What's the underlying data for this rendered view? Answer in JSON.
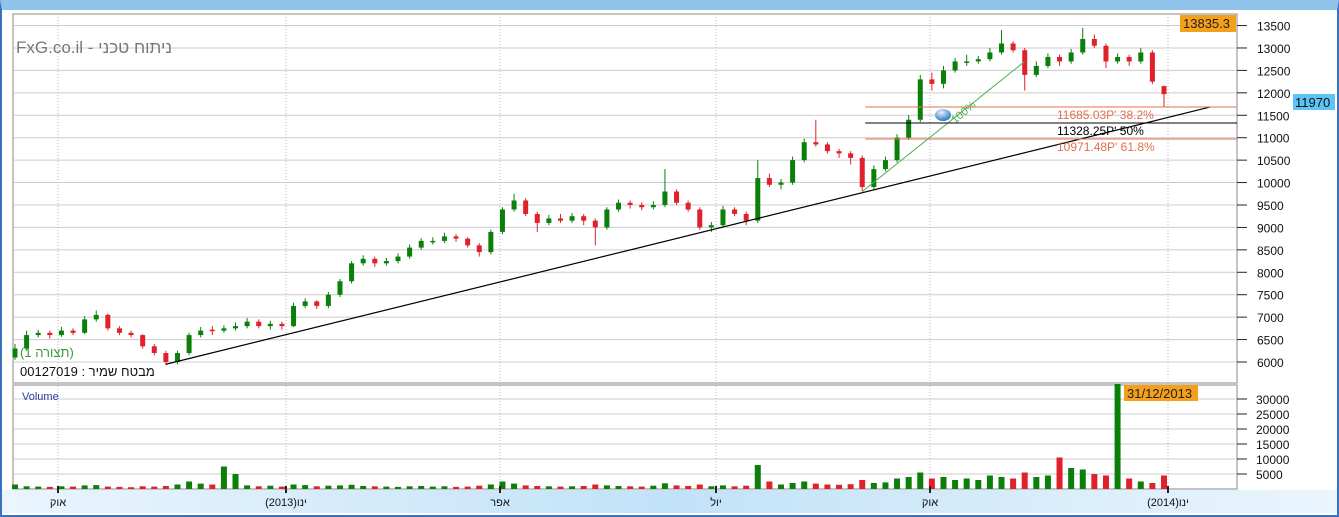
{
  "header": {
    "title": "FxG.co.il - ניתוח טכני",
    "layout_label": "(תצורה 1)",
    "instrument_label": "מבטח שמיר : 00127019",
    "volume_label": "Volume"
  },
  "badges": {
    "high_price": "13835.3",
    "last_price": "11970",
    "last_date": "31/12/2013"
  },
  "colors": {
    "up": "#0a7f0a",
    "down": "#e0202a",
    "fib": "#e07050",
    "badge_orange": "#f5a01a",
    "badge_blue": "#5ec3f5",
    "trend_green": "#4caf50",
    "axis_bar": "#cde6f8",
    "border": "#3a72c0"
  },
  "chart_data": {
    "type": "candlestick",
    "title": "FxG.co.il - ניתוח טכני",
    "price_axis": {
      "ylim": [
        5800,
        13800
      ],
      "ticks": [
        6000,
        6500,
        7000,
        7500,
        8000,
        8500,
        9000,
        9500,
        10000,
        10500,
        11000,
        11500,
        12000,
        12500,
        13000,
        13500
      ],
      "grid": true,
      "position": "right"
    },
    "volume_axis": {
      "ylim": [
        0,
        35000
      ],
      "ticks": [
        5000,
        10000,
        15000,
        20000,
        25000,
        30000
      ],
      "grid": true,
      "position": "right"
    },
    "x_ticks": [
      "אוק",
      "ינו(2013)",
      "אפר",
      "יול",
      "אוק",
      "ינו(2014)"
    ],
    "candles_ohlc": [
      [
        6100,
        6400,
        6050,
        6300
      ],
      [
        6300,
        6700,
        6250,
        6600
      ],
      [
        6600,
        6720,
        6550,
        6650
      ],
      [
        6650,
        6700,
        6520,
        6600
      ],
      [
        6600,
        6780,
        6560,
        6700
      ],
      [
        6700,
        6750,
        6600,
        6650
      ],
      [
        6650,
        7020,
        6620,
        6950
      ],
      [
        6950,
        7150,
        6900,
        7050
      ],
      [
        7050,
        7080,
        6700,
        6750
      ],
      [
        6750,
        6800,
        6600,
        6650
      ],
      [
        6650,
        6700,
        6550,
        6600
      ],
      [
        6600,
        6620,
        6300,
        6350
      ],
      [
        6350,
        6400,
        6150,
        6200
      ],
      [
        6200,
        6250,
        5930,
        6000
      ],
      [
        6000,
        6250,
        5950,
        6200
      ],
      [
        6200,
        6650,
        6150,
        6600
      ],
      [
        6600,
        6780,
        6550,
        6700
      ],
      [
        6720,
        6800,
        6600,
        6700
      ],
      [
        6700,
        6820,
        6650,
        6750
      ],
      [
        6750,
        6880,
        6700,
        6800
      ],
      [
        6800,
        6980,
        6750,
        6900
      ],
      [
        6900,
        6950,
        6750,
        6800
      ],
      [
        6800,
        6920,
        6720,
        6850
      ],
      [
        6850,
        6900,
        6720,
        6800
      ],
      [
        6800,
        7320,
        6780,
        7250
      ],
      [
        7250,
        7420,
        7200,
        7350
      ],
      [
        7350,
        7380,
        7180,
        7250
      ],
      [
        7250,
        7560,
        7200,
        7500
      ],
      [
        7500,
        7850,
        7450,
        7800
      ],
      [
        7800,
        8250,
        7750,
        8200
      ],
      [
        8200,
        8380,
        8150,
        8300
      ],
      [
        8300,
        8350,
        8120,
        8200
      ],
      [
        8200,
        8320,
        8150,
        8250
      ],
      [
        8250,
        8420,
        8200,
        8350
      ],
      [
        8350,
        8620,
        8300,
        8550
      ],
      [
        8550,
        8760,
        8500,
        8700
      ],
      [
        8680,
        8780,
        8620,
        8700
      ],
      [
        8700,
        8880,
        8650,
        8800
      ],
      [
        8800,
        8850,
        8680,
        8750
      ],
      [
        8750,
        8780,
        8550,
        8600
      ],
      [
        8600,
        8650,
        8350,
        8450
      ],
      [
        8450,
        8950,
        8400,
        8900
      ],
      [
        8900,
        9450,
        8850,
        9400
      ],
      [
        9400,
        9750,
        9350,
        9600
      ],
      [
        9600,
        9650,
        9250,
        9300
      ],
      [
        9300,
        9350,
        8900,
        9100
      ],
      [
        9100,
        9280,
        9050,
        9200
      ],
      [
        9200,
        9300,
        9100,
        9150
      ],
      [
        9150,
        9320,
        9100,
        9250
      ],
      [
        9250,
        9300,
        9050,
        9150
      ],
      [
        9150,
        9200,
        8600,
        9000
      ],
      [
        9000,
        9450,
        8950,
        9400
      ],
      [
        9400,
        9620,
        9350,
        9550
      ],
      [
        9550,
        9600,
        9420,
        9500
      ],
      [
        9500,
        9560,
        9380,
        9450
      ],
      [
        9450,
        9580,
        9400,
        9500
      ],
      [
        9500,
        10300,
        9450,
        9800
      ],
      [
        9800,
        9850,
        9500,
        9550
      ],
      [
        9550,
        9600,
        9350,
        9400
      ],
      [
        9400,
        9450,
        8950,
        9000
      ],
      [
        9000,
        9120,
        8900,
        9050
      ],
      [
        9050,
        9480,
        9000,
        9400
      ],
      [
        9400,
        9450,
        9250,
        9300
      ],
      [
        9300,
        9350,
        9050,
        9150
      ],
      [
        9150,
        10500,
        9100,
        10100
      ],
      [
        10100,
        10200,
        9900,
        9950
      ],
      [
        9950,
        10080,
        9850,
        10000
      ],
      [
        10000,
        10580,
        9950,
        10500
      ],
      [
        10500,
        10980,
        10450,
        10900
      ],
      [
        10900,
        11400,
        10800,
        10850
      ],
      [
        10850,
        10900,
        10650,
        10700
      ],
      [
        10700,
        10750,
        10550,
        10650
      ],
      [
        10650,
        10700,
        10400,
        10550
      ],
      [
        10550,
        10600,
        9800,
        9900
      ],
      [
        9900,
        10380,
        9850,
        10300
      ],
      [
        10300,
        10580,
        10250,
        10500
      ],
      [
        10500,
        11080,
        10450,
        11000
      ],
      [
        11000,
        11500,
        10950,
        11400
      ],
      [
        11400,
        12400,
        11350,
        12300
      ],
      [
        12300,
        12450,
        12050,
        12200
      ],
      [
        12200,
        12600,
        12100,
        12500
      ],
      [
        12500,
        12780,
        12450,
        12700
      ],
      [
        12680,
        12850,
        12600,
        12700
      ],
      [
        12700,
        12820,
        12650,
        12750
      ],
      [
        12750,
        13000,
        12700,
        12900
      ],
      [
        12900,
        13400,
        12850,
        13100
      ],
      [
        13100,
        13150,
        12900,
        12950
      ],
      [
        12950,
        13000,
        12050,
        12400
      ],
      [
        12400,
        12700,
        12350,
        12600
      ],
      [
        12600,
        12880,
        12550,
        12800
      ],
      [
        12800,
        12850,
        12600,
        12700
      ],
      [
        12700,
        12980,
        12650,
        12900
      ],
      [
        12900,
        13450,
        12850,
        13200
      ],
      [
        13200,
        13300,
        13000,
        13050
      ],
      [
        13050,
        13100,
        12550,
        12700
      ],
      [
        12700,
        12880,
        12650,
        12800
      ],
      [
        12800,
        12850,
        12600,
        12700
      ],
      [
        12700,
        13000,
        12650,
        12900
      ],
      [
        12900,
        12950,
        12200,
        12250
      ],
      [
        12150,
        12160,
        11685,
        11970
      ]
    ],
    "volume": [
      1500,
      900,
      800,
      700,
      900,
      800,
      1200,
      1300,
      800,
      700,
      600,
      900,
      800,
      1000,
      1500,
      2500,
      1800,
      1500,
      7500,
      5000,
      1200,
      900,
      1100,
      800,
      1500,
      1300,
      900,
      1100,
      1200,
      1400,
      1000,
      900,
      800,
      700,
      900,
      1000,
      800,
      900,
      700,
      800,
      1100,
      1500,
      2500,
      1800,
      1200,
      1000,
      900,
      800,
      900,
      1000,
      1500,
      1200,
      1000,
      900,
      800,
      1100,
      1900,
      1200,
      1000,
      1500,
      900,
      1200,
      900,
      1100,
      8000,
      2500,
      1500,
      2000,
      2500,
      1800,
      1500,
      1400,
      1600,
      3000,
      2000,
      2200,
      3500,
      4000,
      5500,
      3500,
      4000,
      3000,
      3500,
      3000,
      4500,
      4000,
      3500,
      5500,
      4000,
      4500,
      10500,
      7000,
      6500,
      5000,
      4500,
      35000,
      3500,
      2500,
      2000,
      4500
    ],
    "trendline": {
      "from": {
        "candle": 13,
        "price": 5950
      },
      "to": {
        "candle": 103,
        "price": 11685
      }
    },
    "fib_swing": {
      "from": {
        "candle": 73,
        "price": 9800
      },
      "to": {
        "candle": 87,
        "price": 12700
      },
      "label": "100%"
    },
    "fib_levels": [
      {
        "price": 11685.03,
        "label": "11685.03P'  38.2%"
      },
      {
        "price": 11328.25,
        "label": "11328.25P'  50%"
      },
      {
        "price": 10971.48,
        "label": "10971.48P'  61.8%"
      }
    ]
  }
}
